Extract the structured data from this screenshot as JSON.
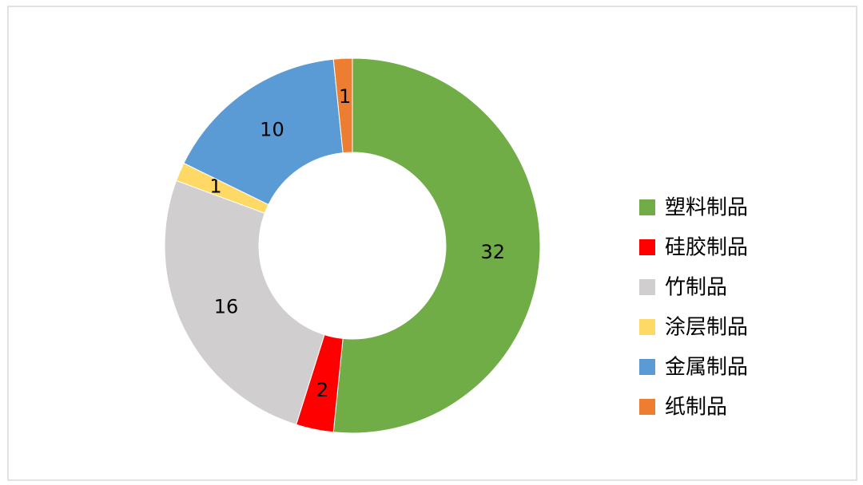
{
  "chart_data": {
    "type": "donut",
    "categories": [
      "塑料制品",
      "硅胶制品",
      "竹制品",
      "涂层制品",
      "金属制品",
      "纸制品"
    ],
    "values": [
      32,
      2,
      16,
      1,
      10,
      1
    ],
    "colors": [
      "#70ad47",
      "#ff0000",
      "#d0cece",
      "#ffd966",
      "#5b9bd5",
      "#ed7d31"
    ],
    "legend": "right"
  }
}
